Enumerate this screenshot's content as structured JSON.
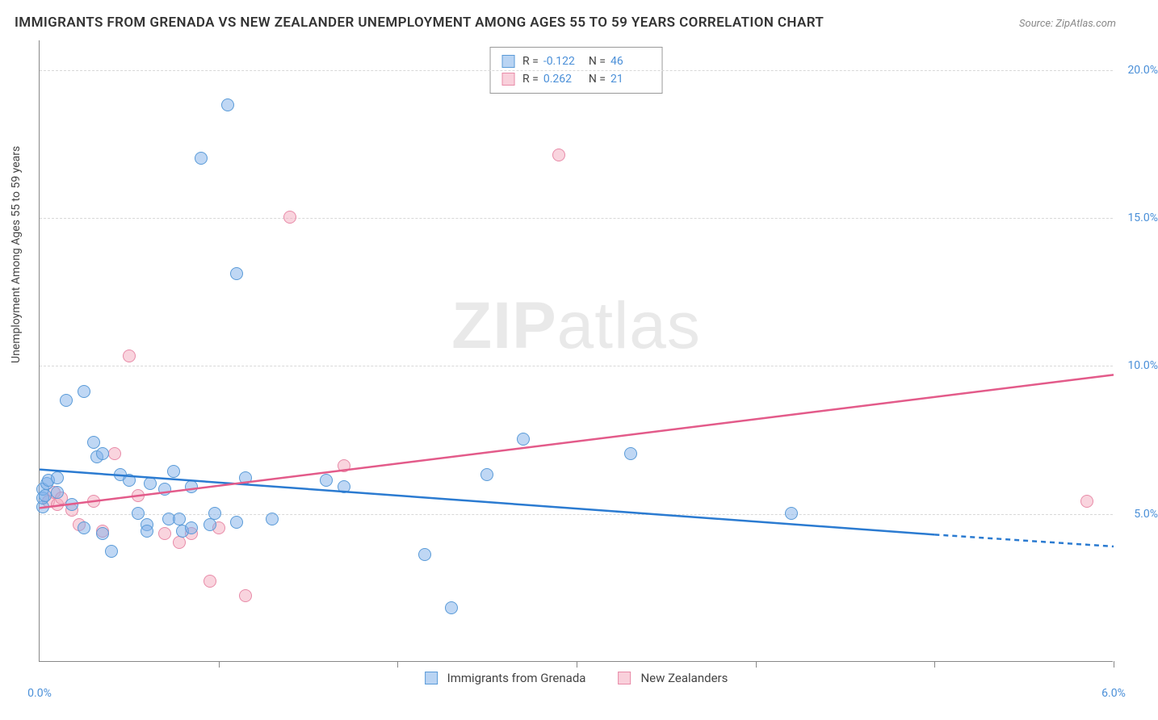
{
  "title": "IMMIGRANTS FROM GRENADA VS NEW ZEALANDER UNEMPLOYMENT AMONG AGES 55 TO 59 YEARS CORRELATION CHART",
  "source": "Source: ZipAtlas.com",
  "ylabel": "Unemployment Among Ages 55 to 59 years",
  "watermark_a": "ZIP",
  "watermark_b": "atlas",
  "chart": {
    "type": "scatter",
    "xlim": [
      0,
      6.0
    ],
    "ylim": [
      0,
      21
    ],
    "yticks": [
      5.0,
      10.0,
      15.0,
      20.0
    ],
    "ytick_labels": [
      "5.0%",
      "10.0%",
      "15.0%",
      "20.0%"
    ],
    "xticks": [
      0,
      1.0,
      2.0,
      3.0,
      4.0,
      5.0,
      6.0
    ],
    "xtick_labels_shown": {
      "start": "0.0%",
      "end": "6.0%"
    },
    "background_color": "#ffffff",
    "grid_color": "#d8d8d8",
    "axis_color": "#888888"
  },
  "series": {
    "blue": {
      "label": "Immigrants from Grenada",
      "fill": "rgba(127,176,233,0.5)",
      "stroke": "#5a9bd8",
      "marker_size": 16,
      "R": "-0.122",
      "N": "46",
      "trend": {
        "x1": 0,
        "y1": 6.5,
        "x2": 5.0,
        "y2": 4.3,
        "x2_dash": 6.0,
        "y2_dash": 3.9,
        "color": "#2b7bd1",
        "width": 2.5
      },
      "points": [
        [
          0.02,
          5.2
        ],
        [
          0.02,
          5.5
        ],
        [
          0.02,
          5.8
        ],
        [
          0.03,
          5.6
        ],
        [
          0.04,
          6.0
        ],
        [
          0.05,
          6.1
        ],
        [
          0.1,
          5.7
        ],
        [
          0.1,
          6.2
        ],
        [
          0.15,
          8.8
        ],
        [
          0.18,
          5.3
        ],
        [
          0.25,
          9.1
        ],
        [
          0.25,
          4.5
        ],
        [
          0.3,
          7.4
        ],
        [
          0.32,
          6.9
        ],
        [
          0.35,
          7.0
        ],
        [
          0.35,
          4.3
        ],
        [
          0.4,
          3.7
        ],
        [
          0.45,
          6.3
        ],
        [
          0.5,
          6.1
        ],
        [
          0.55,
          5.0
        ],
        [
          0.6,
          4.6
        ],
        [
          0.6,
          4.4
        ],
        [
          0.62,
          6.0
        ],
        [
          0.7,
          5.8
        ],
        [
          0.72,
          4.8
        ],
        [
          0.75,
          6.4
        ],
        [
          0.78,
          4.8
        ],
        [
          0.8,
          4.4
        ],
        [
          0.85,
          5.9
        ],
        [
          0.85,
          4.5
        ],
        [
          0.9,
          17.0
        ],
        [
          0.95,
          4.6
        ],
        [
          0.98,
          5.0
        ],
        [
          1.05,
          18.8
        ],
        [
          1.1,
          13.1
        ],
        [
          1.1,
          4.7
        ],
        [
          1.15,
          6.2
        ],
        [
          1.3,
          4.8
        ],
        [
          1.6,
          6.1
        ],
        [
          1.7,
          5.9
        ],
        [
          2.15,
          3.6
        ],
        [
          2.3,
          1.8
        ],
        [
          2.5,
          6.3
        ],
        [
          2.7,
          7.5
        ],
        [
          3.3,
          7.0
        ],
        [
          4.2,
          5.0
        ]
      ]
    },
    "pink": {
      "label": "New Zealanders",
      "fill": "rgba(244,169,189,0.5)",
      "stroke": "#e88ba8",
      "marker_size": 16,
      "R": "0.262",
      "N": "21",
      "trend": {
        "x1": 0,
        "y1": 5.2,
        "x2": 6.0,
        "y2": 9.7,
        "color": "#e35b8a",
        "width": 2.5
      },
      "points": [
        [
          0.05,
          5.4
        ],
        [
          0.08,
          5.7
        ],
        [
          0.1,
          5.3
        ],
        [
          0.12,
          5.5
        ],
        [
          0.18,
          5.1
        ],
        [
          0.22,
          4.6
        ],
        [
          0.3,
          5.4
        ],
        [
          0.35,
          4.4
        ],
        [
          0.42,
          7.0
        ],
        [
          0.5,
          10.3
        ],
        [
          0.55,
          5.6
        ],
        [
          0.7,
          4.3
        ],
        [
          0.78,
          4.0
        ],
        [
          0.85,
          4.3
        ],
        [
          0.95,
          2.7
        ],
        [
          1.0,
          4.5
        ],
        [
          1.15,
          2.2
        ],
        [
          1.4,
          15.0
        ],
        [
          1.7,
          6.6
        ],
        [
          2.9,
          17.1
        ],
        [
          5.85,
          5.4
        ]
      ]
    }
  },
  "legend_top": {
    "rows": [
      {
        "swatch": "blue",
        "R_label": "R =",
        "R": "-0.122",
        "N_label": "N =",
        "N": "46"
      },
      {
        "swatch": "pink",
        "R_label": "R =",
        "R": "0.262",
        "N_label": "N =",
        "N": "21"
      }
    ]
  },
  "legend_bottom": [
    {
      "swatch": "blue",
      "label": "Immigrants from Grenada"
    },
    {
      "swatch": "pink",
      "label": "New Zealanders"
    }
  ]
}
